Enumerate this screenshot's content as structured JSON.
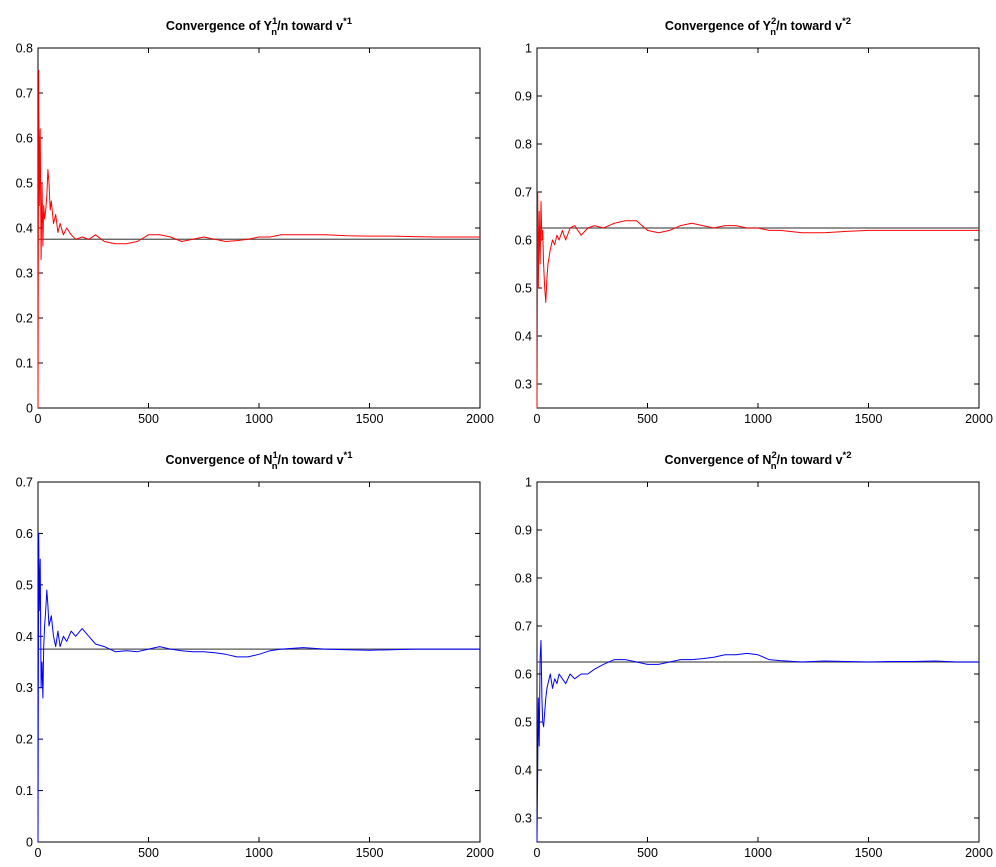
{
  "colors": {
    "red_series": "#ff0000",
    "blue_series": "#0000ff",
    "reference_line": "#555555",
    "axes": "#000000"
  },
  "chart_data": [
    {
      "type": "line",
      "title": {
        "pre": "Convergence of ",
        "var": "Y",
        "sup": "1",
        "sub": "n",
        "mid": "/n toward v",
        "tsup": "*1"
      },
      "xlim": [
        0,
        2000
      ],
      "ylim": [
        0,
        0.8
      ],
      "xticks": [
        0,
        500,
        1000,
        1500,
        2000
      ],
      "yticks": [
        0,
        0.1,
        0.2,
        0.3,
        0.4,
        0.5,
        0.6,
        0.7,
        0.8
      ],
      "xticklabels": [
        "0",
        "500",
        "1000",
        "1500",
        "2000"
      ],
      "yticklabels": [
        "0",
        "0.1",
        "0.2",
        "0.3",
        "0.4",
        "0.5",
        "0.6",
        "0.7",
        "0.8"
      ],
      "reference": 0.375,
      "series_color": "red",
      "series": [
        {
          "points": [
            [
              0,
              0
            ],
            [
              3,
              0.75
            ],
            [
              6,
              0.45
            ],
            [
              10,
              0.62
            ],
            [
              14,
              0.33
            ],
            [
              18,
              0.5
            ],
            [
              22,
              0.36
            ],
            [
              26,
              0.45
            ],
            [
              30,
              0.42
            ],
            [
              35,
              0.44
            ],
            [
              40,
              0.47
            ],
            [
              45,
              0.53
            ],
            [
              50,
              0.5
            ],
            [
              55,
              0.44
            ],
            [
              60,
              0.46
            ],
            [
              70,
              0.41
            ],
            [
              80,
              0.43
            ],
            [
              90,
              0.39
            ],
            [
              100,
              0.41
            ],
            [
              115,
              0.385
            ],
            [
              130,
              0.4
            ],
            [
              150,
              0.385
            ],
            [
              170,
              0.375
            ],
            [
              200,
              0.38
            ],
            [
              230,
              0.375
            ],
            [
              260,
              0.385
            ],
            [
              300,
              0.37
            ],
            [
              350,
              0.365
            ],
            [
              400,
              0.365
            ],
            [
              450,
              0.37
            ],
            [
              500,
              0.385
            ],
            [
              550,
              0.385
            ],
            [
              600,
              0.38
            ],
            [
              650,
              0.37
            ],
            [
              700,
              0.375
            ],
            [
              750,
              0.38
            ],
            [
              800,
              0.375
            ],
            [
              850,
              0.37
            ],
            [
              900,
              0.372
            ],
            [
              950,
              0.375
            ],
            [
              1000,
              0.38
            ],
            [
              1050,
              0.38
            ],
            [
              1100,
              0.385
            ],
            [
              1200,
              0.385
            ],
            [
              1300,
              0.385
            ],
            [
              1400,
              0.383
            ],
            [
              1500,
              0.382
            ],
            [
              1600,
              0.382
            ],
            [
              1700,
              0.381
            ],
            [
              1800,
              0.38
            ],
            [
              1900,
              0.38
            ],
            [
              2000,
              0.38
            ]
          ]
        }
      ]
    },
    {
      "type": "line",
      "title": {
        "pre": "Convergence of ",
        "var": "Y",
        "sup": "2",
        "sub": "n",
        "mid": "/n toward v",
        "tsup": "*2"
      },
      "xlim": [
        0,
        2000
      ],
      "ylim": [
        0.25,
        1
      ],
      "xticks": [
        0,
        500,
        1000,
        1500,
        2000
      ],
      "yticks": [
        0.3,
        0.4,
        0.5,
        0.6,
        0.7,
        0.8,
        0.9,
        1
      ],
      "xticklabels": [
        "0",
        "500",
        "1000",
        "1500",
        "2000"
      ],
      "yticklabels": [
        "0.3",
        "0.4",
        "0.5",
        "0.6",
        "0.7",
        "0.8",
        "0.9",
        "1"
      ],
      "reference": 0.625,
      "series_color": "red",
      "series": [
        {
          "points": [
            [
              0,
              0.25
            ],
            [
              3,
              0.7
            ],
            [
              6,
              0.5
            ],
            [
              10,
              0.66
            ],
            [
              14,
              0.55
            ],
            [
              18,
              0.68
            ],
            [
              22,
              0.6
            ],
            [
              26,
              0.62
            ],
            [
              30,
              0.55
            ],
            [
              35,
              0.5
            ],
            [
              40,
              0.47
            ],
            [
              45,
              0.52
            ],
            [
              50,
              0.55
            ],
            [
              60,
              0.58
            ],
            [
              70,
              0.6
            ],
            [
              80,
              0.59
            ],
            [
              90,
              0.61
            ],
            [
              100,
              0.6
            ],
            [
              115,
              0.62
            ],
            [
              130,
              0.6
            ],
            [
              150,
              0.625
            ],
            [
              170,
              0.63
            ],
            [
              200,
              0.61
            ],
            [
              230,
              0.625
            ],
            [
              260,
              0.63
            ],
            [
              300,
              0.625
            ],
            [
              350,
              0.635
            ],
            [
              400,
              0.64
            ],
            [
              450,
              0.64
            ],
            [
              500,
              0.62
            ],
            [
              550,
              0.615
            ],
            [
              600,
              0.62
            ],
            [
              650,
              0.63
            ],
            [
              700,
              0.635
            ],
            [
              750,
              0.63
            ],
            [
              800,
              0.625
            ],
            [
              850,
              0.63
            ],
            [
              900,
              0.63
            ],
            [
              950,
              0.625
            ],
            [
              1000,
              0.625
            ],
            [
              1050,
              0.62
            ],
            [
              1100,
              0.62
            ],
            [
              1200,
              0.615
            ],
            [
              1300,
              0.615
            ],
            [
              1400,
              0.618
            ],
            [
              1500,
              0.62
            ],
            [
              1600,
              0.62
            ],
            [
              1700,
              0.62
            ],
            [
              1800,
              0.62
            ],
            [
              1900,
              0.62
            ],
            [
              2000,
              0.62
            ]
          ]
        }
      ]
    },
    {
      "type": "line",
      "title": {
        "pre": "Convergence of ",
        "var": "N",
        "sup": "1",
        "sub": "n",
        "mid": "/n toward v",
        "tsup": "*1"
      },
      "xlim": [
        0,
        2000
      ],
      "ylim": [
        0,
        0.7
      ],
      "xticks": [
        0,
        500,
        1000,
        1500,
        2000
      ],
      "yticks": [
        0,
        0.1,
        0.2,
        0.3,
        0.4,
        0.5,
        0.6,
        0.7
      ],
      "xticklabels": [
        "0",
        "500",
        "1000",
        "1500",
        "2000"
      ],
      "yticklabels": [
        "0",
        "0.1",
        "0.2",
        "0.3",
        "0.4",
        "0.5",
        "0.6",
        "0.7"
      ],
      "reference": 0.375,
      "series_color": "blue",
      "series": [
        {
          "points": [
            [
              0,
              0
            ],
            [
              3,
              0.6
            ],
            [
              6,
              0.45
            ],
            [
              10,
              0.55
            ],
            [
              14,
              0.3
            ],
            [
              18,
              0.35
            ],
            [
              22,
              0.28
            ],
            [
              26,
              0.38
            ],
            [
              30,
              0.42
            ],
            [
              35,
              0.45
            ],
            [
              40,
              0.49
            ],
            [
              45,
              0.46
            ],
            [
              50,
              0.42
            ],
            [
              60,
              0.44
            ],
            [
              70,
              0.4
            ],
            [
              80,
              0.38
            ],
            [
              90,
              0.41
            ],
            [
              100,
              0.38
            ],
            [
              115,
              0.4
            ],
            [
              130,
              0.39
            ],
            [
              150,
              0.41
            ],
            [
              170,
              0.4
            ],
            [
              200,
              0.415
            ],
            [
              230,
              0.4
            ],
            [
              260,
              0.385
            ],
            [
              300,
              0.38
            ],
            [
              350,
              0.37
            ],
            [
              400,
              0.372
            ],
            [
              450,
              0.37
            ],
            [
              500,
              0.375
            ],
            [
              550,
              0.38
            ],
            [
              600,
              0.375
            ],
            [
              650,
              0.372
            ],
            [
              700,
              0.37
            ],
            [
              750,
              0.37
            ],
            [
              800,
              0.368
            ],
            [
              850,
              0.365
            ],
            [
              900,
              0.36
            ],
            [
              950,
              0.36
            ],
            [
              1000,
              0.365
            ],
            [
              1050,
              0.372
            ],
            [
              1100,
              0.375
            ],
            [
              1200,
              0.378
            ],
            [
              1300,
              0.375
            ],
            [
              1400,
              0.374
            ],
            [
              1500,
              0.373
            ],
            [
              1600,
              0.374
            ],
            [
              1700,
              0.375
            ],
            [
              1800,
              0.375
            ],
            [
              1900,
              0.375
            ],
            [
              2000,
              0.375
            ]
          ]
        }
      ]
    },
    {
      "type": "line",
      "title": {
        "pre": "Convergence of ",
        "var": "N",
        "sup": "2",
        "sub": "n",
        "mid": "/n toward v",
        "tsup": "*2"
      },
      "xlim": [
        0,
        2000
      ],
      "ylim": [
        0.25,
        1
      ],
      "xticks": [
        0,
        500,
        1000,
        1500,
        2000
      ],
      "yticks": [
        0.3,
        0.4,
        0.5,
        0.6,
        0.7,
        0.8,
        0.9,
        1
      ],
      "xticklabels": [
        "0",
        "500",
        "1000",
        "1500",
        "2000"
      ],
      "yticklabels": [
        "0.3",
        "0.4",
        "0.5",
        "0.6",
        "0.7",
        "0.8",
        "0.9",
        "1"
      ],
      "reference": 0.625,
      "series_color": "blue",
      "series": [
        {
          "points": [
            [
              0,
              0.25
            ],
            [
              3,
              0.4
            ],
            [
              6,
              0.55
            ],
            [
              10,
              0.45
            ],
            [
              14,
              0.63
            ],
            [
              18,
              0.67
            ],
            [
              22,
              0.55
            ],
            [
              26,
              0.5
            ],
            [
              30,
              0.49
            ],
            [
              35,
              0.52
            ],
            [
              40,
              0.55
            ],
            [
              45,
              0.57
            ],
            [
              50,
              0.58
            ],
            [
              60,
              0.6
            ],
            [
              70,
              0.57
            ],
            [
              80,
              0.59
            ],
            [
              90,
              0.58
            ],
            [
              100,
              0.6
            ],
            [
              115,
              0.59
            ],
            [
              130,
              0.58
            ],
            [
              150,
              0.6
            ],
            [
              170,
              0.59
            ],
            [
              200,
              0.6
            ],
            [
              230,
              0.6
            ],
            [
              260,
              0.61
            ],
            [
              300,
              0.62
            ],
            [
              350,
              0.63
            ],
            [
              400,
              0.63
            ],
            [
              450,
              0.625
            ],
            [
              500,
              0.62
            ],
            [
              550,
              0.62
            ],
            [
              600,
              0.625
            ],
            [
              650,
              0.63
            ],
            [
              700,
              0.63
            ],
            [
              750,
              0.632
            ],
            [
              800,
              0.635
            ],
            [
              850,
              0.64
            ],
            [
              900,
              0.64
            ],
            [
              950,
              0.643
            ],
            [
              1000,
              0.64
            ],
            [
              1050,
              0.63
            ],
            [
              1100,
              0.628
            ],
            [
              1200,
              0.625
            ],
            [
              1300,
              0.627
            ],
            [
              1400,
              0.626
            ],
            [
              1500,
              0.625
            ],
            [
              1600,
              0.626
            ],
            [
              1700,
              0.626
            ],
            [
              1800,
              0.627
            ],
            [
              1900,
              0.625
            ],
            [
              2000,
              0.625
            ]
          ]
        }
      ]
    }
  ]
}
